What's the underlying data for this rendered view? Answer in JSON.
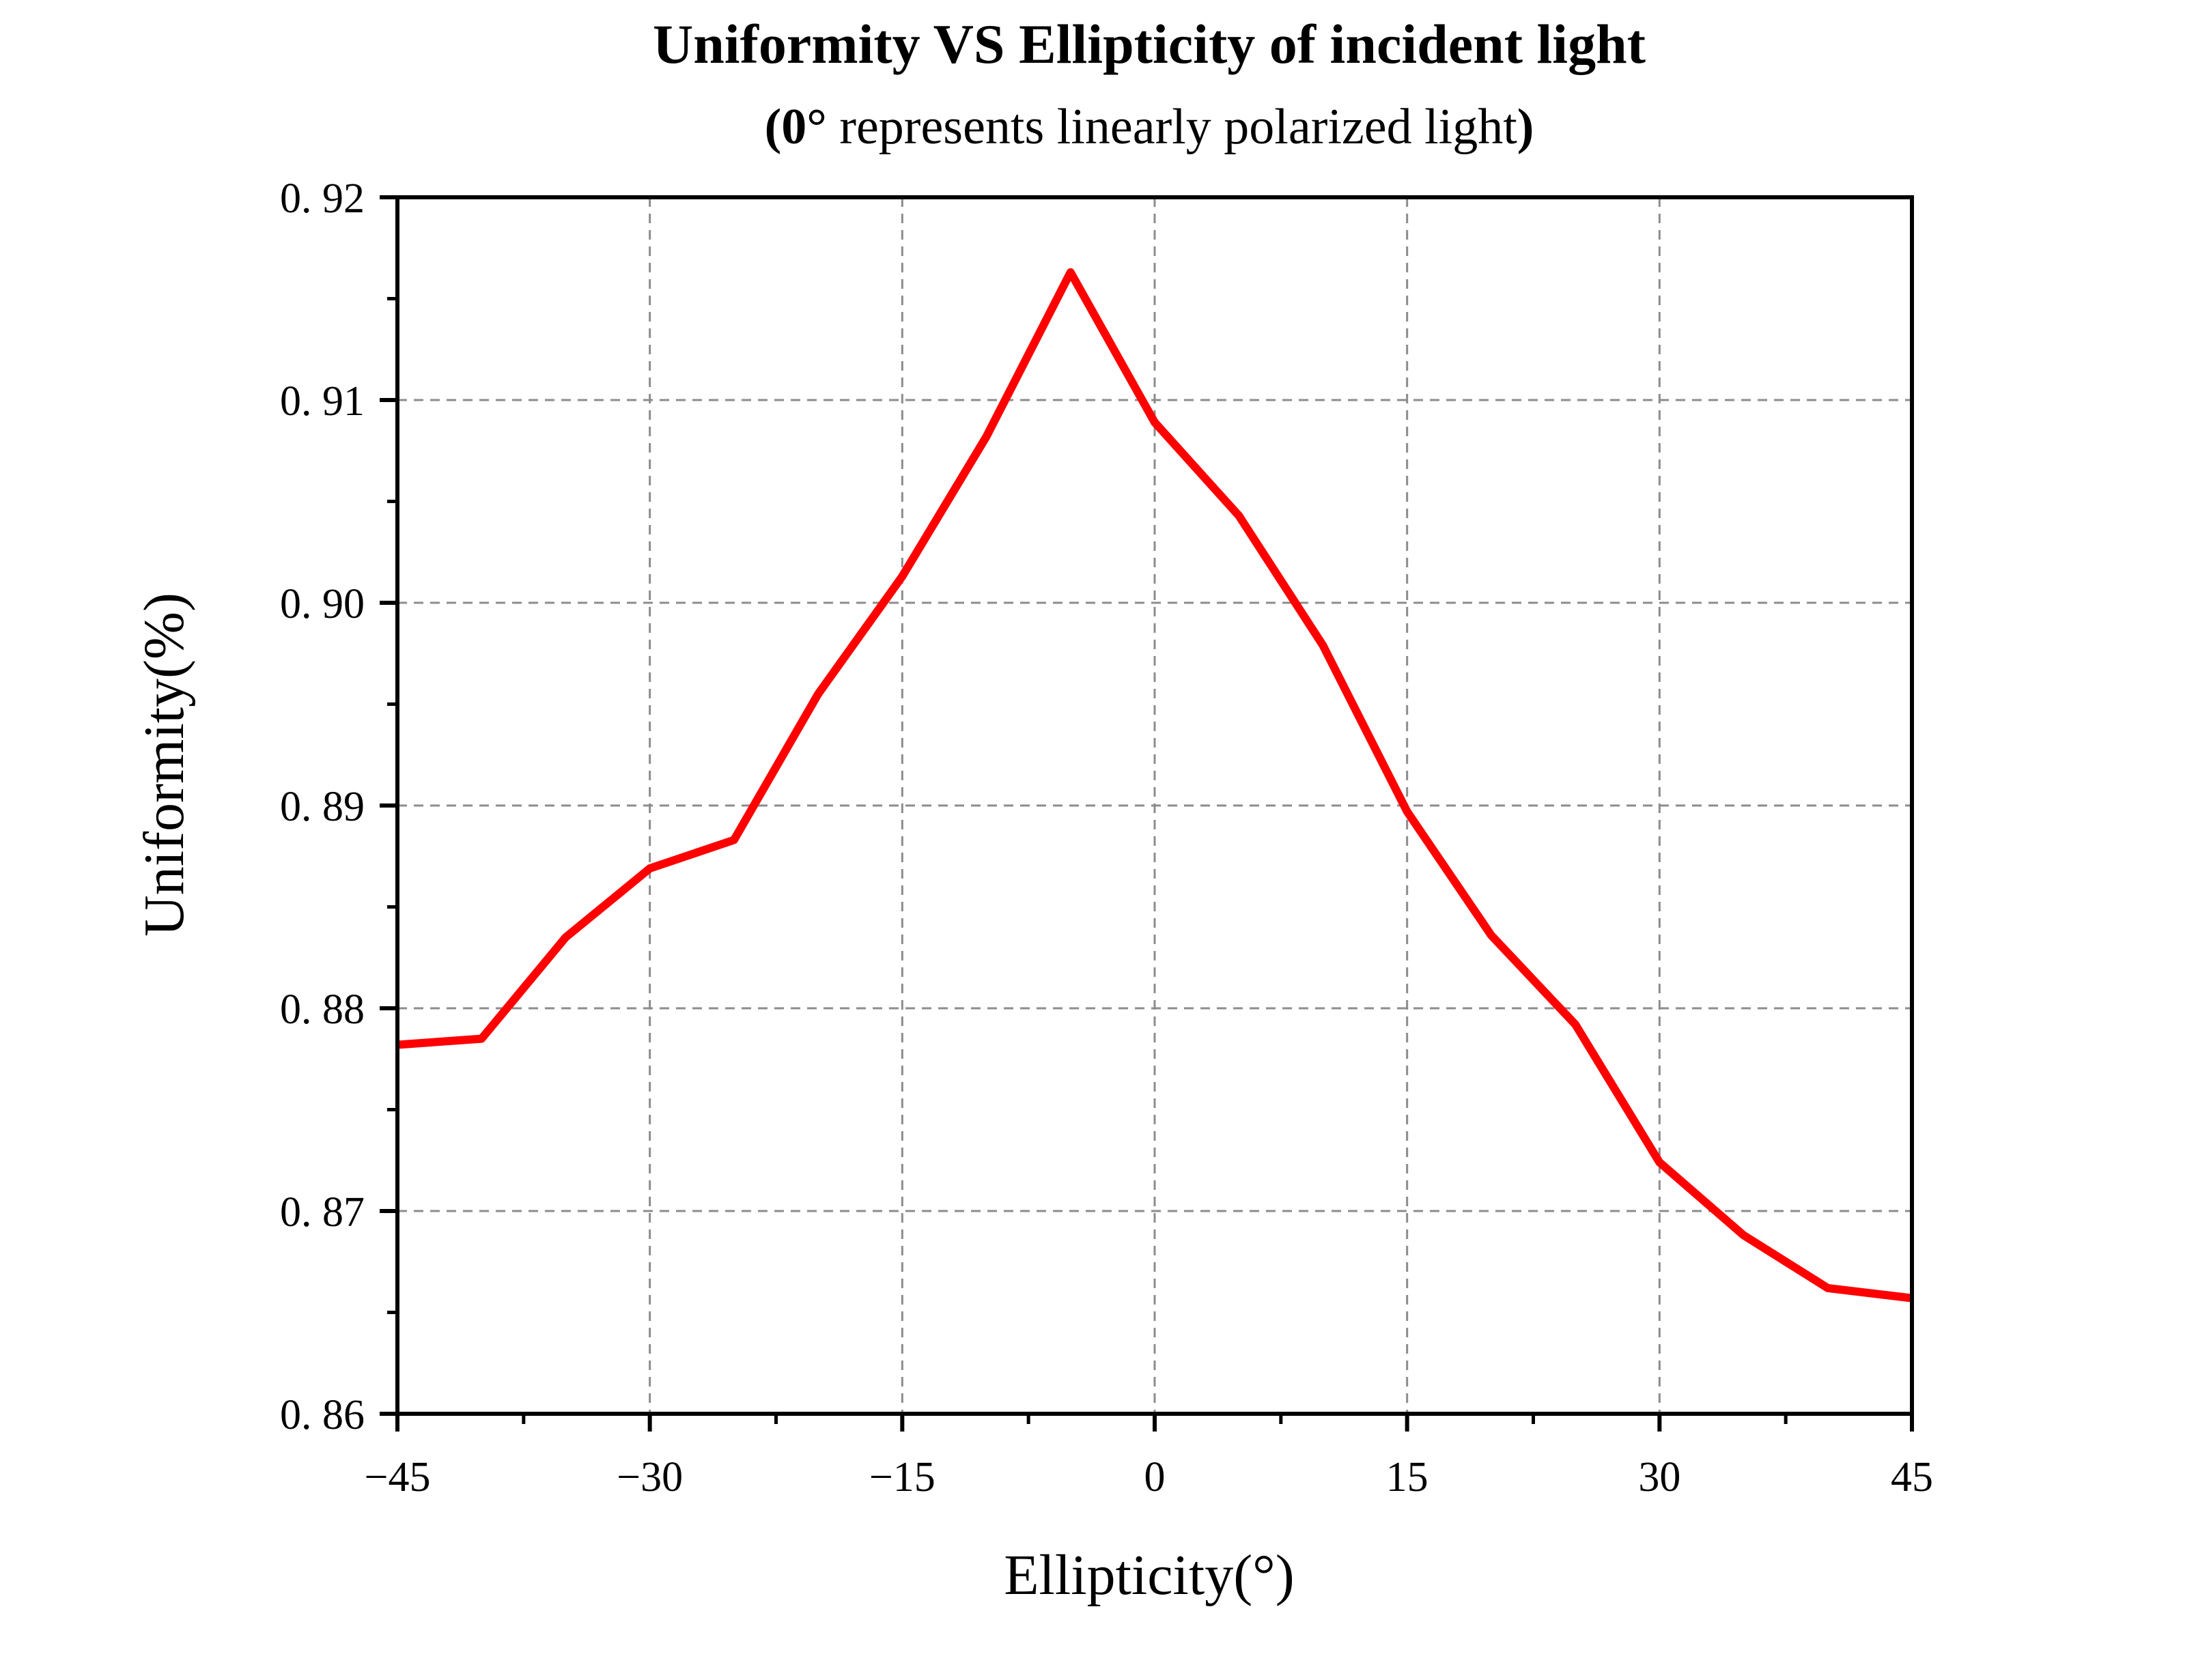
{
  "chart_data": {
    "type": "line",
    "title": "Uniformity VS Ellipticity of incident light",
    "subtitle": {
      "open": "(",
      "bold_part": "0°",
      "text": " represents linearly polarized light",
      "close": ")"
    },
    "xlabel": "Ellipticity(°)",
    "ylabel": "Uniformity(%)",
    "xlim": [
      -45,
      45
    ],
    "ylim": [
      0.86,
      0.92
    ],
    "x_ticks": [
      -45,
      -30,
      -15,
      0,
      15,
      30,
      45
    ],
    "x_tick_labels": [
      "−45",
      "−30",
      "−15",
      "0",
      "15",
      "30",
      "45"
    ],
    "y_ticks": [
      0.86,
      0.87,
      0.88,
      0.89,
      0.9,
      0.91,
      0.92
    ],
    "y_tick_labels": [
      "0. 86",
      "0. 87",
      "0. 88",
      "0. 89",
      "0. 90",
      "0. 91",
      "0. 92"
    ],
    "grid": true,
    "series": [
      {
        "color": "#ff0000",
        "x": [
          -45,
          -40,
          -35,
          -30,
          -25,
          -20,
          -15,
          -10,
          -5,
          0,
          5,
          10,
          15,
          20,
          25,
          30,
          35,
          40,
          45
        ],
        "y": [
          0.8782,
          0.8785,
          0.8835,
          0.8869,
          0.8883,
          0.8955,
          0.9013,
          0.9082,
          0.9163,
          0.9089,
          0.9043,
          0.8979,
          0.8897,
          0.8836,
          0.8792,
          0.8724,
          0.8688,
          0.8662,
          0.8657
        ]
      }
    ]
  }
}
